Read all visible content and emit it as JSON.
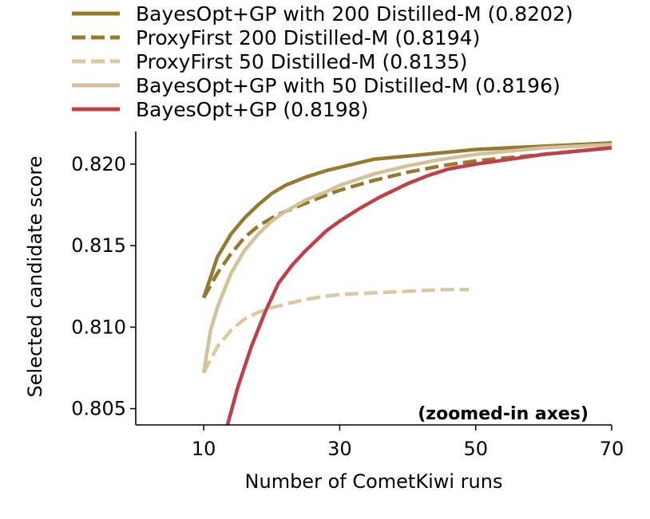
{
  "chart_data": {
    "type": "line",
    "xlabel": "Number of CometKiwi runs",
    "ylabel": "Selected candidate score",
    "xlim": [
      0,
      70
    ],
    "ylim": [
      0.804,
      0.822
    ],
    "xticks": [
      10,
      30,
      50,
      70
    ],
    "yticks": [
      0.805,
      0.81,
      0.815,
      0.82
    ],
    "xtick_labels": [
      "10",
      "30",
      "50",
      "70"
    ],
    "ytick_labels": [
      "0.805",
      "0.810",
      "0.815",
      "0.820"
    ],
    "annotation": "(zoomed-in axes)",
    "legend_position": "top",
    "series": [
      {
        "name": "BayesOpt+GP with 200 Distilled-M (0.8202)",
        "color": "#947a2e",
        "style": "solid",
        "x": [
          10,
          12,
          14,
          16,
          18,
          20,
          22,
          25,
          28,
          30,
          35,
          40,
          45,
          50,
          55,
          60,
          65,
          70
        ],
        "y": [
          0.8118,
          0.8143,
          0.8157,
          0.8167,
          0.8175,
          0.8182,
          0.8187,
          0.8192,
          0.8196,
          0.8198,
          0.8203,
          0.8205,
          0.8207,
          0.8209,
          0.821,
          0.8211,
          0.8212,
          0.8213
        ]
      },
      {
        "name": "ProxyFirst 200 Distilled-M (0.8194)",
        "color": "#947a2e",
        "style": "dashed",
        "x": [
          10,
          12,
          14,
          16,
          18,
          20,
          22,
          25,
          28,
          30,
          35,
          40,
          45,
          50,
          55,
          60,
          65,
          70
        ],
        "y": [
          0.8118,
          0.8133,
          0.8145,
          0.8155,
          0.8162,
          0.8167,
          0.8171,
          0.8176,
          0.8181,
          0.8184,
          0.819,
          0.8195,
          0.8199,
          0.8202,
          0.8204,
          0.8206,
          0.8208,
          0.821
        ]
      },
      {
        "name": "ProxyFirst 50 Distilled-M (0.8135)",
        "color": "#d7c9a4",
        "style": "dashed",
        "x": [
          10,
          12,
          14,
          16,
          18,
          20,
          22,
          25,
          28,
          30,
          35,
          40,
          45,
          49
        ],
        "y": [
          0.8072,
          0.8088,
          0.8098,
          0.8105,
          0.8109,
          0.8112,
          0.8114,
          0.8117,
          0.8119,
          0.812,
          0.8121,
          0.8122,
          0.8123,
          0.8123
        ]
      },
      {
        "name": "BayesOpt+GP with 50 Distilled-M (0.8196)",
        "color": "#d2c299",
        "style": "solid",
        "x": [
          10,
          11,
          12,
          14,
          16,
          18,
          20,
          22,
          25,
          28,
          30,
          35,
          40,
          45,
          50,
          55,
          60,
          65,
          70
        ],
        "y": [
          0.8072,
          0.8098,
          0.8112,
          0.8133,
          0.8147,
          0.8157,
          0.8165,
          0.8171,
          0.8178,
          0.8183,
          0.8187,
          0.8194,
          0.8199,
          0.8203,
          0.8206,
          0.8208,
          0.821,
          0.8211,
          0.8212
        ]
      },
      {
        "name": "BayesOpt+GP (0.8198)",
        "color": "#c0404a",
        "style": "solid",
        "x": [
          13.5,
          15,
          17,
          19,
          21,
          23,
          25,
          28,
          30,
          33,
          36,
          40,
          43,
          46,
          50,
          55,
          60,
          65,
          70
        ],
        "y": [
          0.804,
          0.8063,
          0.8088,
          0.8109,
          0.8127,
          0.8138,
          0.8147,
          0.8159,
          0.8165,
          0.8173,
          0.818,
          0.8188,
          0.8193,
          0.8197,
          0.82,
          0.8203,
          0.8206,
          0.8208,
          0.821
        ]
      }
    ]
  }
}
